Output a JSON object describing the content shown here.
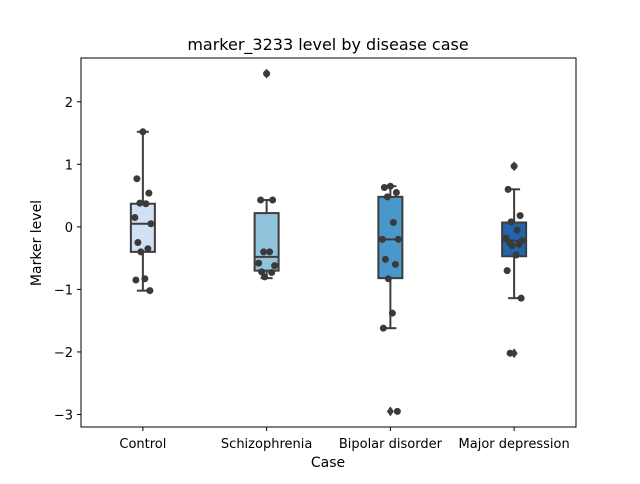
{
  "chart_data": {
    "type": "box",
    "title": "marker_3233 level by disease case",
    "xlabel": "Case",
    "ylabel": "Marker level",
    "ylim": [
      -3.2,
      2.7
    ],
    "yticks": [
      2,
      1,
      0,
      -1,
      -2,
      -3
    ],
    "ytick_labels": [
      "2",
      "1",
      "0",
      "−1",
      "−2",
      "−3"
    ],
    "grid": false,
    "categories": [
      "Control",
      "Schizophrenia",
      "Bipolar disorder",
      "Major depression"
    ],
    "colors": [
      "#cfe1f2",
      "#93c4de",
      "#4a98c9",
      "#2166ac"
    ],
    "boxes": [
      {
        "category": "Control",
        "q1": -0.4,
        "median": 0.05,
        "q3": 0.37,
        "whisker_low": -1.02,
        "whisker_high": 1.52,
        "outliers": []
      },
      {
        "category": "Schizophrenia",
        "q1": -0.7,
        "median": -0.48,
        "q3": 0.22,
        "whisker_low": -0.82,
        "whisker_high": 0.43,
        "outliers": [
          2.45
        ]
      },
      {
        "category": "Bipolar disorder",
        "q1": -0.82,
        "median": -0.2,
        "q3": 0.48,
        "whisker_low": -1.62,
        "whisker_high": 0.65,
        "outliers": [
          -2.95
        ]
      },
      {
        "category": "Major depression",
        "q1": -0.47,
        "median": -0.22,
        "q3": 0.07,
        "whisker_low": -1.14,
        "whisker_high": 0.6,
        "outliers": [
          0.97,
          -2.02
        ]
      }
    ],
    "points": [
      {
        "category": "Control",
        "values": [
          1.52,
          0.77,
          0.54,
          0.38,
          0.37,
          0.15,
          0.05,
          -0.25,
          -0.35,
          -0.4,
          -0.83,
          -0.85,
          -1.02
        ]
      },
      {
        "category": "Schizophrenia",
        "values": [
          2.45,
          0.43,
          0.43,
          -0.4,
          -0.4,
          -0.58,
          -0.62,
          -0.72,
          -0.73,
          -0.8
        ]
      },
      {
        "category": "Bipolar disorder",
        "values": [
          0.65,
          0.63,
          0.55,
          0.48,
          0.07,
          -0.2,
          -0.2,
          -0.52,
          -0.6,
          -0.83,
          -1.38,
          -1.62,
          -2.95
        ]
      },
      {
        "category": "Major depression",
        "values": [
          0.97,
          0.6,
          0.18,
          0.08,
          -0.05,
          -0.18,
          -0.22,
          -0.25,
          -0.28,
          -0.3,
          -0.45,
          -0.7,
          -1.14,
          -2.02
        ]
      }
    ]
  }
}
